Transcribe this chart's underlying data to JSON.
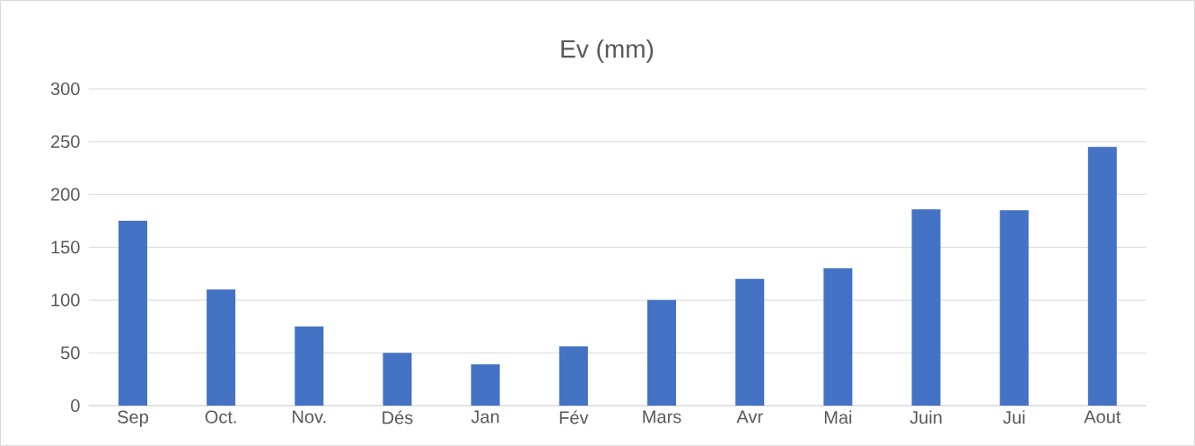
{
  "chart_data": {
    "type": "bar",
    "title": "Ev (mm)",
    "categories": [
      "Sep",
      "Oct.",
      "Nov.",
      "Dés",
      "Jan",
      "Fév",
      "Mars",
      "Avr",
      "Mai",
      "Juin",
      "Jui",
      "Aout"
    ],
    "values": [
      175,
      110,
      75,
      50,
      39,
      56,
      100,
      120,
      130,
      186,
      185,
      245
    ],
    "color": "#4472c4",
    "ylim": [
      0,
      300
    ],
    "yticks": [
      0,
      50,
      100,
      150,
      200,
      250,
      300
    ],
    "grid": "y"
  }
}
